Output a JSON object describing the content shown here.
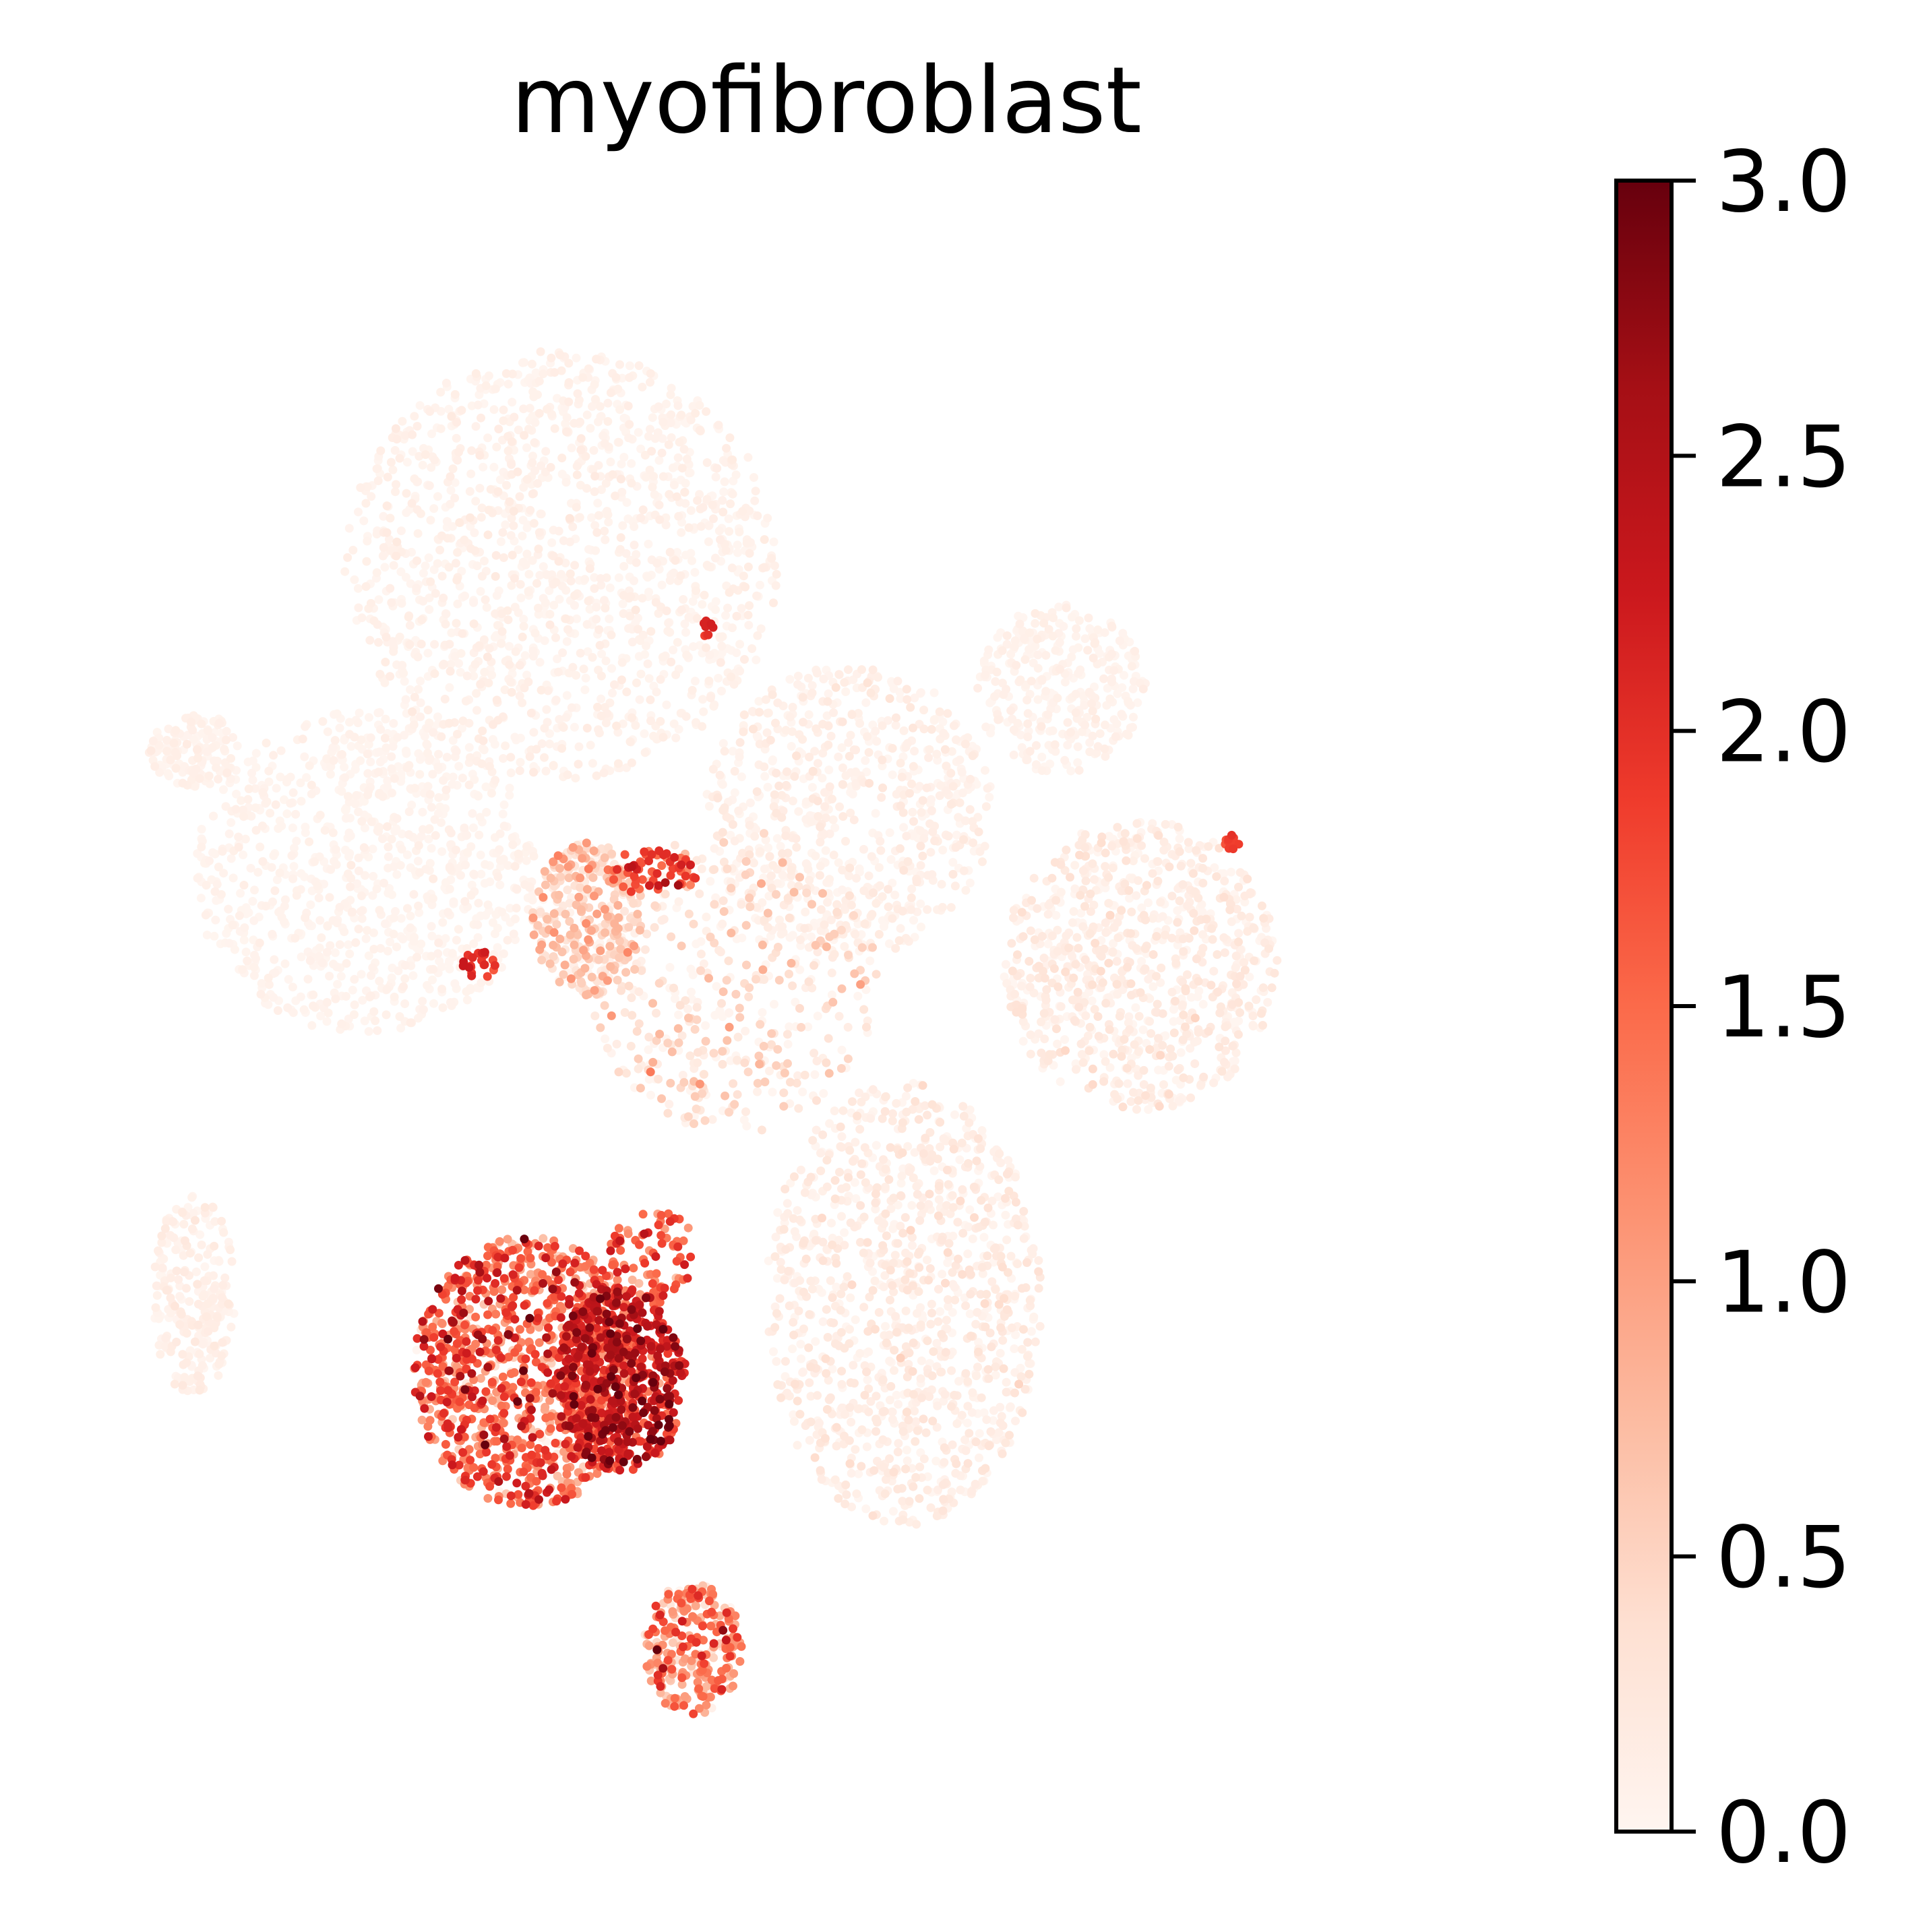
{
  "chart_data": {
    "type": "scatter",
    "title": "myofibroblast",
    "xlabel": "",
    "ylabel": "",
    "axes_visible": false,
    "colormap": "Reds",
    "colormap_stops": [
      "#fff5f0",
      "#fee0d2",
      "#fcbba1",
      "#fc9272",
      "#fb6a4a",
      "#ef3b2c",
      "#cb181d",
      "#a50f15",
      "#67000d"
    ],
    "colorbar": {
      "range": [
        0,
        3
      ],
      "ticks": [
        0.0,
        0.5,
        1.0,
        1.5,
        2.0,
        2.5,
        3.0
      ],
      "tick_labels": [
        "0.0",
        "0.5",
        "1.0",
        "1.5",
        "2.0",
        "2.5",
        "3.0"
      ],
      "placement": "right"
    },
    "xlim": [
      0,
      100
    ],
    "ylim": [
      0,
      100
    ],
    "clusters": [
      {
        "cx": 34,
        "cy": 79,
        "rx": 16.5,
        "ry": 14,
        "n": 1400,
        "mean": 0.05,
        "sd": 0.06
      },
      {
        "cx": 19,
        "cy": 59,
        "rx": 13,
        "ry": 10.5,
        "n": 900,
        "mean": 0.03,
        "sd": 0.04
      },
      {
        "cx": 6,
        "cy": 67,
        "rx": 3.5,
        "ry": 2.4,
        "n": 140,
        "mean": 0.05,
        "sd": 0.05
      },
      {
        "cx": 6,
        "cy": 31.5,
        "rx": 3.2,
        "ry": 6.5,
        "n": 260,
        "mean": 0.08,
        "sd": 0.07
      },
      {
        "cx": 56,
        "cy": 63,
        "rx": 11,
        "ry": 9.5,
        "n": 700,
        "mean": 0.07,
        "sd": 0.08
      },
      {
        "cx": 72,
        "cy": 71,
        "rx": 6.5,
        "ry": 5.5,
        "n": 320,
        "mean": 0.05,
        "sd": 0.05
      },
      {
        "cx": 78,
        "cy": 53,
        "rx": 10.5,
        "ry": 9.5,
        "n": 850,
        "mean": 0.12,
        "sd": 0.12
      },
      {
        "cx": 60,
        "cy": 31,
        "rx": 10.5,
        "ry": 14.5,
        "n": 1100,
        "mean": 0.13,
        "sd": 0.12
      },
      {
        "cx": 36,
        "cy": 56,
        "rx": 4.2,
        "ry": 5.0,
        "n": 320,
        "mean": 0.45,
        "sd": 0.35
      },
      {
        "cx": 47,
        "cy": 52,
        "rx": 11,
        "ry": 10,
        "n": 450,
        "mean": 0.22,
        "sd": 0.3
      },
      {
        "cx": 31.5,
        "cy": 26.5,
        "rx": 8.8,
        "ry": 8.8,
        "n": 1100,
        "mean": 1.45,
        "sd": 0.55
      },
      {
        "cx": 38.5,
        "cy": 26,
        "rx": 5,
        "ry": 6,
        "n": 550,
        "mean": 2.2,
        "sd": 0.45
      },
      {
        "cx": 41,
        "cy": 34,
        "rx": 3.5,
        "ry": 3,
        "n": 80,
        "mean": 1.5,
        "sd": 0.4
      },
      {
        "cx": 44,
        "cy": 8.5,
        "rx": 3.8,
        "ry": 4.3,
        "n": 260,
        "mean": 1.0,
        "sd": 0.55
      },
      {
        "cx": 41,
        "cy": 59,
        "rx": 3.5,
        "ry": 1.5,
        "n": 60,
        "mean": 1.8,
        "sd": 0.3
      },
      {
        "cx": 28,
        "cy": 53,
        "rx": 1.5,
        "ry": 1.0,
        "n": 20,
        "mean": 1.9,
        "sd": 0.2
      },
      {
        "cx": 45,
        "cy": 75,
        "rx": 0.6,
        "ry": 0.6,
        "n": 10,
        "mean": 2.0,
        "sd": 0.1
      },
      {
        "cx": 85,
        "cy": 61,
        "rx": 0.8,
        "ry": 0.5,
        "n": 12,
        "mean": 1.8,
        "sd": 0.1
      }
    ]
  }
}
